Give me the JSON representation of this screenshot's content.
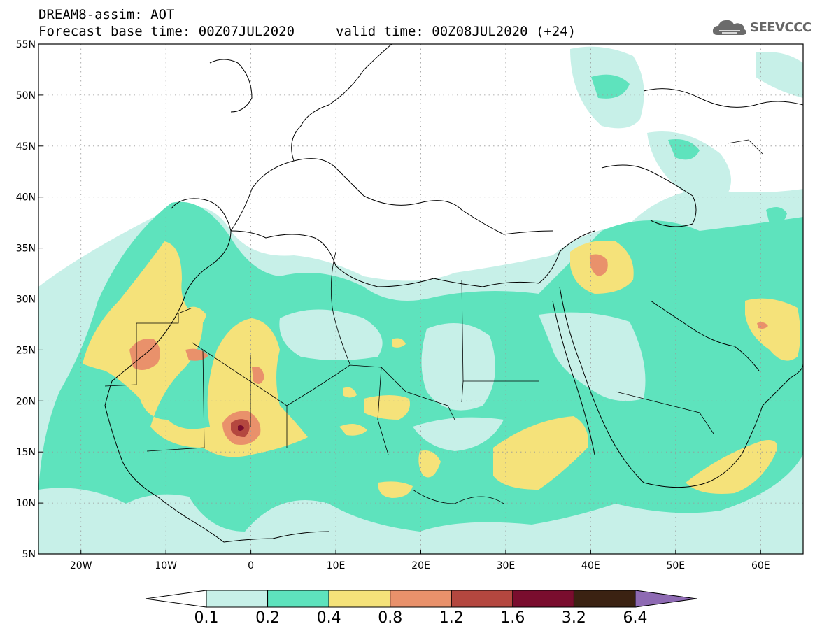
{
  "header": {
    "line1": "DREAM8-assim: AOT",
    "line2_base": "Forecast base time: 00Z07JUL2020",
    "line2_valid": "valid time: 00Z08JUL2020 (+24)",
    "logo_text": "SEEVCCC",
    "logo_icon": "cloud-icon"
  },
  "map_data": {
    "projection": "lat-lon",
    "lon_range": [
      -25,
      65
    ],
    "lat_range": [
      5,
      55
    ],
    "lat_labels": [
      {
        "lat": 55,
        "label": "55N"
      },
      {
        "lat": 50,
        "label": "50N"
      },
      {
        "lat": 45,
        "label": "45N"
      },
      {
        "lat": 40,
        "label": "40N"
      },
      {
        "lat": 35,
        "label": "35N"
      },
      {
        "lat": 30,
        "label": "30N"
      },
      {
        "lat": 25,
        "label": "25N"
      },
      {
        "lat": 20,
        "label": "20N"
      },
      {
        "lat": 15,
        "label": "15N"
      },
      {
        "lat": 10,
        "label": "10N"
      },
      {
        "lat": 5,
        "label": "5N"
      }
    ],
    "lon_labels": [
      {
        "lon": -20,
        "label": "20W"
      },
      {
        "lon": -10,
        "label": "10W"
      },
      {
        "lon": 0,
        "label": "0"
      },
      {
        "lon": 10,
        "label": "10E"
      },
      {
        "lon": 20,
        "label": "20E"
      },
      {
        "lon": 30,
        "label": "30E"
      },
      {
        "lon": 40,
        "label": "40E"
      },
      {
        "lon": 50,
        "label": "50E"
      },
      {
        "lon": 60,
        "label": "60E"
      }
    ],
    "grid": true
  },
  "colorbar": {
    "levels": [
      "0.1",
      "0.2",
      "0.4",
      "0.8",
      "1.2",
      "1.6",
      "3.2",
      "6.4"
    ],
    "colors": [
      "#ffffff",
      "#c7f0e8",
      "#5ee3bd",
      "#f5e27a",
      "#e9916b",
      "#b4473f",
      "#7a0d2e",
      "#3b2212",
      "#8e6ab3"
    ]
  }
}
